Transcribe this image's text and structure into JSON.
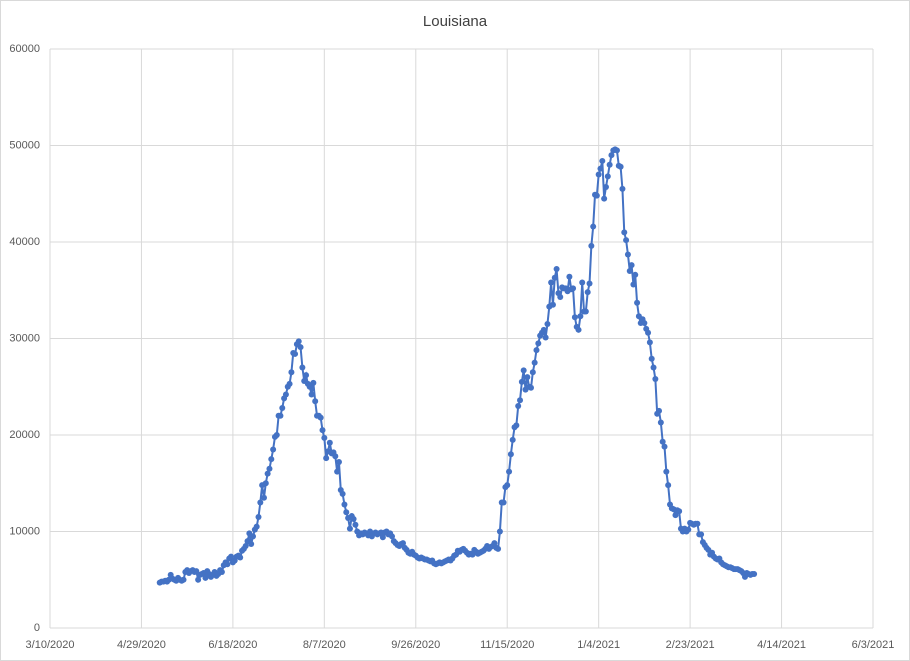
{
  "chart_data": {
    "type": "line",
    "title": "Louisiana",
    "color": "#4472c4",
    "grid": true,
    "xlim": [
      "3/10/2020",
      "6/3/2021"
    ],
    "xticks": [
      "3/10/2020",
      "4/29/2020",
      "6/18/2020",
      "8/7/2020",
      "9/26/2020",
      "11/15/2020",
      "1/4/2021",
      "2/23/2021",
      "4/14/2021",
      "6/3/2021"
    ],
    "ylim": [
      0,
      60000
    ],
    "yticks": [
      0,
      10000,
      20000,
      30000,
      40000,
      50000,
      60000
    ],
    "x": [
      "5/9/2020",
      "5/10/2020",
      "5/11/2020",
      "5/12/2020",
      "5/13/2020",
      "5/14/2020",
      "5/15/2020",
      "5/16/2020",
      "5/17/2020",
      "5/18/2020",
      "5/19/2020",
      "5/20/2020",
      "5/21/2020",
      "5/22/2020",
      "5/23/2020",
      "5/24/2020",
      "5/25/2020",
      "5/26/2020",
      "5/27/2020",
      "5/28/2020",
      "5/29/2020",
      "5/30/2020",
      "5/31/2020",
      "6/1/2020",
      "6/2/2020",
      "6/3/2020",
      "6/4/2020",
      "6/5/2020",
      "6/6/2020",
      "6/7/2020",
      "6/8/2020",
      "6/9/2020",
      "6/10/2020",
      "6/11/2020",
      "6/12/2020",
      "6/13/2020",
      "6/14/2020",
      "6/15/2020",
      "6/16/2020",
      "6/17/2020",
      "6/18/2020",
      "6/19/2020",
      "6/20/2020",
      "6/21/2020",
      "6/22/2020",
      "6/23/2020",
      "6/24/2020",
      "6/25/2020",
      "6/26/2020",
      "6/27/2020",
      "6/28/2020",
      "6/29/2020",
      "6/30/2020",
      "7/1/2020",
      "7/2/2020",
      "7/3/2020",
      "7/4/2020",
      "7/5/2020",
      "7/6/2020",
      "7/7/2020",
      "7/8/2020",
      "7/9/2020",
      "7/10/2020",
      "7/11/2020",
      "7/12/2020",
      "7/13/2020",
      "7/14/2020",
      "7/15/2020",
      "7/16/2020",
      "7/17/2020",
      "7/18/2020",
      "7/19/2020",
      "7/20/2020",
      "7/21/2020",
      "7/22/2020",
      "7/23/2020",
      "7/24/2020",
      "7/25/2020",
      "7/26/2020",
      "7/27/2020",
      "7/28/2020",
      "7/29/2020",
      "7/30/2020",
      "7/31/2020",
      "8/1/2020",
      "8/2/2020",
      "8/3/2020",
      "8/4/2020",
      "8/5/2020",
      "8/6/2020",
      "8/7/2020",
      "8/8/2020",
      "8/9/2020",
      "8/10/2020",
      "8/11/2020",
      "8/12/2020",
      "8/13/2020",
      "8/14/2020",
      "8/15/2020",
      "8/16/2020",
      "8/17/2020",
      "8/18/2020",
      "8/19/2020",
      "8/20/2020",
      "8/21/2020",
      "8/22/2020",
      "8/23/2020",
      "8/24/2020",
      "8/25/2020",
      "8/26/2020",
      "8/27/2020",
      "8/28/2020",
      "8/29/2020",
      "8/30/2020",
      "8/31/2020",
      "9/1/2020",
      "9/2/2020",
      "9/3/2020",
      "9/4/2020",
      "9/5/2020",
      "9/6/2020",
      "9/7/2020",
      "9/8/2020",
      "9/9/2020",
      "9/10/2020",
      "9/11/2020",
      "9/12/2020",
      "9/13/2020",
      "9/14/2020",
      "9/15/2020",
      "9/16/2020",
      "9/17/2020",
      "9/18/2020",
      "9/19/2020",
      "9/20/2020",
      "9/21/2020",
      "9/22/2020",
      "9/23/2020",
      "9/24/2020",
      "9/25/2020",
      "9/26/2020",
      "9/27/2020",
      "9/28/2020",
      "9/29/2020",
      "9/30/2020",
      "10/1/2020",
      "10/2/2020",
      "10/3/2020",
      "10/4/2020",
      "10/5/2020",
      "10/6/2020",
      "10/7/2020",
      "10/8/2020",
      "10/9/2020",
      "10/10/2020",
      "10/11/2020",
      "10/12/2020",
      "10/13/2020",
      "10/14/2020",
      "10/15/2020",
      "10/16/2020",
      "10/17/2020",
      "10/18/2020",
      "10/19/2020",
      "10/20/2020",
      "10/21/2020",
      "10/22/2020",
      "10/23/2020",
      "10/24/2020",
      "10/25/2020",
      "10/26/2020",
      "10/27/2020",
      "10/28/2020",
      "10/29/2020",
      "10/30/2020",
      "10/31/2020",
      "11/1/2020",
      "11/2/2020",
      "11/3/2020",
      "11/4/2020",
      "11/5/2020",
      "11/6/2020",
      "11/7/2020",
      "11/8/2020",
      "11/9/2020",
      "11/10/2020",
      "11/11/2020",
      "11/12/2020",
      "11/13/2020",
      "11/14/2020",
      "11/15/2020",
      "11/16/2020",
      "11/17/2020",
      "11/18/2020",
      "11/19/2020",
      "11/20/2020",
      "11/21/2020",
      "11/22/2020",
      "11/23/2020",
      "11/24/2020",
      "11/25/2020",
      "11/26/2020",
      "11/27/2020",
      "11/28/2020",
      "11/29/2020",
      "11/30/2020",
      "12/1/2020",
      "12/2/2020",
      "12/3/2020",
      "12/4/2020",
      "12/5/2020",
      "12/6/2020",
      "12/7/2020",
      "12/8/2020",
      "12/9/2020",
      "12/10/2020",
      "12/11/2020",
      "12/12/2020",
      "12/13/2020",
      "12/14/2020",
      "12/15/2020",
      "12/16/2020",
      "12/17/2020",
      "12/18/2020",
      "12/19/2020",
      "12/20/2020",
      "12/21/2020",
      "12/22/2020",
      "12/23/2020",
      "12/24/2020",
      "12/25/2020",
      "12/26/2020",
      "12/27/2020",
      "12/28/2020",
      "12/29/2020",
      "12/30/2020",
      "12/31/2020",
      "1/1/2021",
      "1/2/2021",
      "1/3/2021",
      "1/4/2021",
      "1/5/2021",
      "1/6/2021",
      "1/7/2021",
      "1/8/2021",
      "1/9/2021",
      "1/10/2021",
      "1/11/2021",
      "1/12/2021",
      "1/13/2021",
      "1/14/2021",
      "1/15/2021",
      "1/16/2021",
      "1/17/2021",
      "1/18/2021",
      "1/19/2021",
      "1/20/2021",
      "1/21/2021",
      "1/22/2021",
      "1/23/2021",
      "1/24/2021",
      "1/25/2021",
      "1/26/2021",
      "1/27/2021",
      "1/28/2021",
      "1/29/2021",
      "1/30/2021",
      "1/31/2021",
      "2/1/2021",
      "2/2/2021",
      "2/3/2021",
      "2/4/2021",
      "2/5/2021",
      "2/6/2021",
      "2/7/2021",
      "2/8/2021",
      "2/9/2021",
      "2/10/2021",
      "2/11/2021",
      "2/12/2021",
      "2/13/2021",
      "2/14/2021",
      "2/15/2021",
      "2/16/2021",
      "2/17/2021",
      "2/18/2021",
      "2/19/2021",
      "2/20/2021",
      "2/21/2021",
      "2/22/2021",
      "2/23/2021",
      "2/24/2021",
      "2/25/2021",
      "2/26/2021",
      "2/27/2021",
      "2/28/2021",
      "3/1/2021",
      "3/2/2021",
      "3/3/2021",
      "3/4/2021",
      "3/5/2021",
      "3/6/2021",
      "3/7/2021",
      "3/8/2021",
      "3/9/2021",
      "3/10/2021",
      "3/11/2021",
      "3/12/2021",
      "3/13/2021",
      "3/14/2021",
      "3/15/2021",
      "3/16/2021",
      "3/17/2021",
      "3/18/2021",
      "3/19/2021",
      "3/20/2021",
      "3/21/2021",
      "3/22/2021",
      "3/23/2021",
      "3/24/2021",
      "3/25/2021",
      "3/26/2021",
      "3/27/2021",
      "3/28/2021",
      "3/29/2021",
      "3/30/2021"
    ],
    "values": [
      4700,
      4800,
      4800,
      4900,
      4800,
      5000,
      5500,
      5100,
      5000,
      4900,
      5200,
      5000,
      4900,
      5000,
      5800,
      6000,
      5700,
      5900,
      6000,
      5800,
      5900,
      5000,
      5500,
      5600,
      5700,
      5200,
      5900,
      5600,
      5300,
      5500,
      5800,
      5400,
      5600,
      6000,
      5800,
      6500,
      6800,
      6600,
      7200,
      7400,
      6800,
      7000,
      7400,
      7500,
      7300,
      8000,
      8200,
      8500,
      9000,
      9800,
      8700,
      9500,
      10200,
      10500,
      11500,
      13000,
      14800,
      13500,
      15000,
      16000,
      16500,
      17500,
      18500,
      19800,
      20000,
      22000,
      22000,
      22800,
      23800,
      24200,
      25000,
      25300,
      26500,
      28500,
      28400,
      29400,
      29700,
      29100,
      27000,
      25600,
      26200,
      25300,
      25000,
      24200,
      25400,
      23500,
      22000,
      22000,
      21800,
      20500,
      19700,
      17600,
      18300,
      19200,
      18100,
      18200,
      17800,
      16200,
      17200,
      14300,
      13900,
      12800,
      12000,
      11400,
      10300,
      11600,
      11300,
      10700,
      10000,
      9600,
      9800,
      9700,
      9900,
      9800,
      9600,
      10000,
      9500,
      9800,
      9900,
      9700,
      9800,
      9900,
      9400,
      9900,
      10000,
      9700,
      9800,
      9500,
      9000,
      8800,
      8600,
      8500,
      8700,
      8800,
      8300,
      8100,
      7800,
      7700,
      7900,
      7600,
      7500,
      7300,
      7200,
      7300,
      7200,
      7100,
      7100,
      7000,
      6900,
      7000,
      6700,
      6600,
      6700,
      6800,
      6700,
      6800,
      6900,
      7000,
      7100,
      7000,
      7200,
      7500,
      7600,
      8000,
      7900,
      8100,
      8200,
      8000,
      7800,
      7600,
      7700,
      7600,
      8100,
      7900,
      7700,
      7800,
      7900,
      8000,
      8200,
      8500,
      8200,
      8400,
      8500,
      8800,
      8300,
      8200,
      10000,
      13000,
      13000,
      14600,
      14800,
      16200,
      18000,
      19500,
      20800,
      21000,
      23000,
      23600,
      25500,
      26700,
      24700,
      26000,
      25000,
      24900,
      26500,
      27500,
      28800,
      29500,
      30300,
      30600,
      30900,
      30100,
      31500,
      33300,
      35800,
      33500,
      36300,
      37200,
      34700,
      34300,
      35300,
      35200,
      35200,
      34900,
      36400,
      35100,
      35200,
      32200,
      31200,
      30900,
      32300,
      35800,
      32800,
      32800,
      34800,
      35700,
      39600,
      41600,
      44900,
      44800,
      47000,
      47600,
      48400,
      44500,
      45700,
      46800,
      48000,
      49000,
      49500,
      49600,
      49500,
      47900,
      47800,
      45500,
      41000,
      40200,
      38700,
      37000,
      37600,
      35600,
      36600,
      33700,
      32300,
      31600,
      32000,
      31600,
      31000,
      30600,
      29600,
      27900,
      27000,
      25800,
      22200,
      22500,
      21300,
      19300,
      18800,
      16200,
      14800,
      12800,
      12400,
      12300,
      11700,
      12200,
      12100,
      10300,
      10000,
      10300,
      10000,
      10200,
      10900,
      10800,
      10700,
      10800,
      10800,
      9700,
      9700,
      8900,
      8600,
      8300,
      8100,
      7600,
      7800,
      7400,
      7200,
      7100,
      7200,
      6800,
      6600,
      6500,
      6400,
      6300,
      6300,
      6200,
      6100,
      6100,
      6100,
      6000,
      5900,
      5700,
      5300,
      5700,
      5600,
      5500,
      5600,
      5600
    ]
  }
}
